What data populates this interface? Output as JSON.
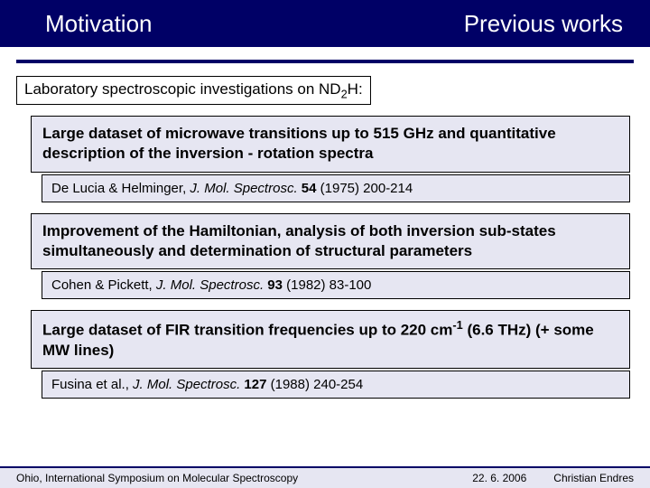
{
  "colors": {
    "header_bg": "#000066",
    "header_text": "#ffffff",
    "box_bg": "#e6e6f2",
    "box_border": "#000000",
    "page_bg": "#ffffff"
  },
  "typography": {
    "header_fontsize": 26,
    "intro_fontsize": 17,
    "main_fontsize": 17,
    "citation_fontsize": 15,
    "footer_fontsize": 12,
    "font_family": "Arial"
  },
  "header": {
    "left": "Motivation",
    "right": "Previous works"
  },
  "intro": {
    "prefix": "Laboratory spectroscopic investigations on ND",
    "sub": "2",
    "suffix": "H:"
  },
  "blocks": [
    {
      "main": "Large dataset of microwave transitions up to 515 GHz and quantitative description of the inversion - rotation spectra",
      "citation": {
        "authors": "De Lucia & Helminger, ",
        "journal": "J. Mol. Spectrosc. ",
        "volume": "54",
        "rest": " (1975) 200-214"
      }
    },
    {
      "main": "Improvement of the Hamiltonian, analysis of both inversion sub-states simultaneously and determination of structural parameters",
      "citation": {
        "authors": "Cohen & Pickett, ",
        "journal": "J. Mol. Spectrosc. ",
        "volume": "93",
        "rest": " (1982) 83-100"
      }
    },
    {
      "main_prefix": "Large dataset of FIR transition frequencies up to 220 cm",
      "main_sup": "-1",
      "main_suffix": " (6.6 THz) (+ some MW lines)",
      "citation": {
        "authors": "Fusina et al., ",
        "journal": "J. Mol. Spectrosc. ",
        "volume": "127",
        "rest": " (1988) 240-254"
      }
    }
  ],
  "footer": {
    "left": "Ohio, International Symposium on Molecular Spectroscopy",
    "date": "22. 6. 2006",
    "author": "Christian Endres"
  }
}
